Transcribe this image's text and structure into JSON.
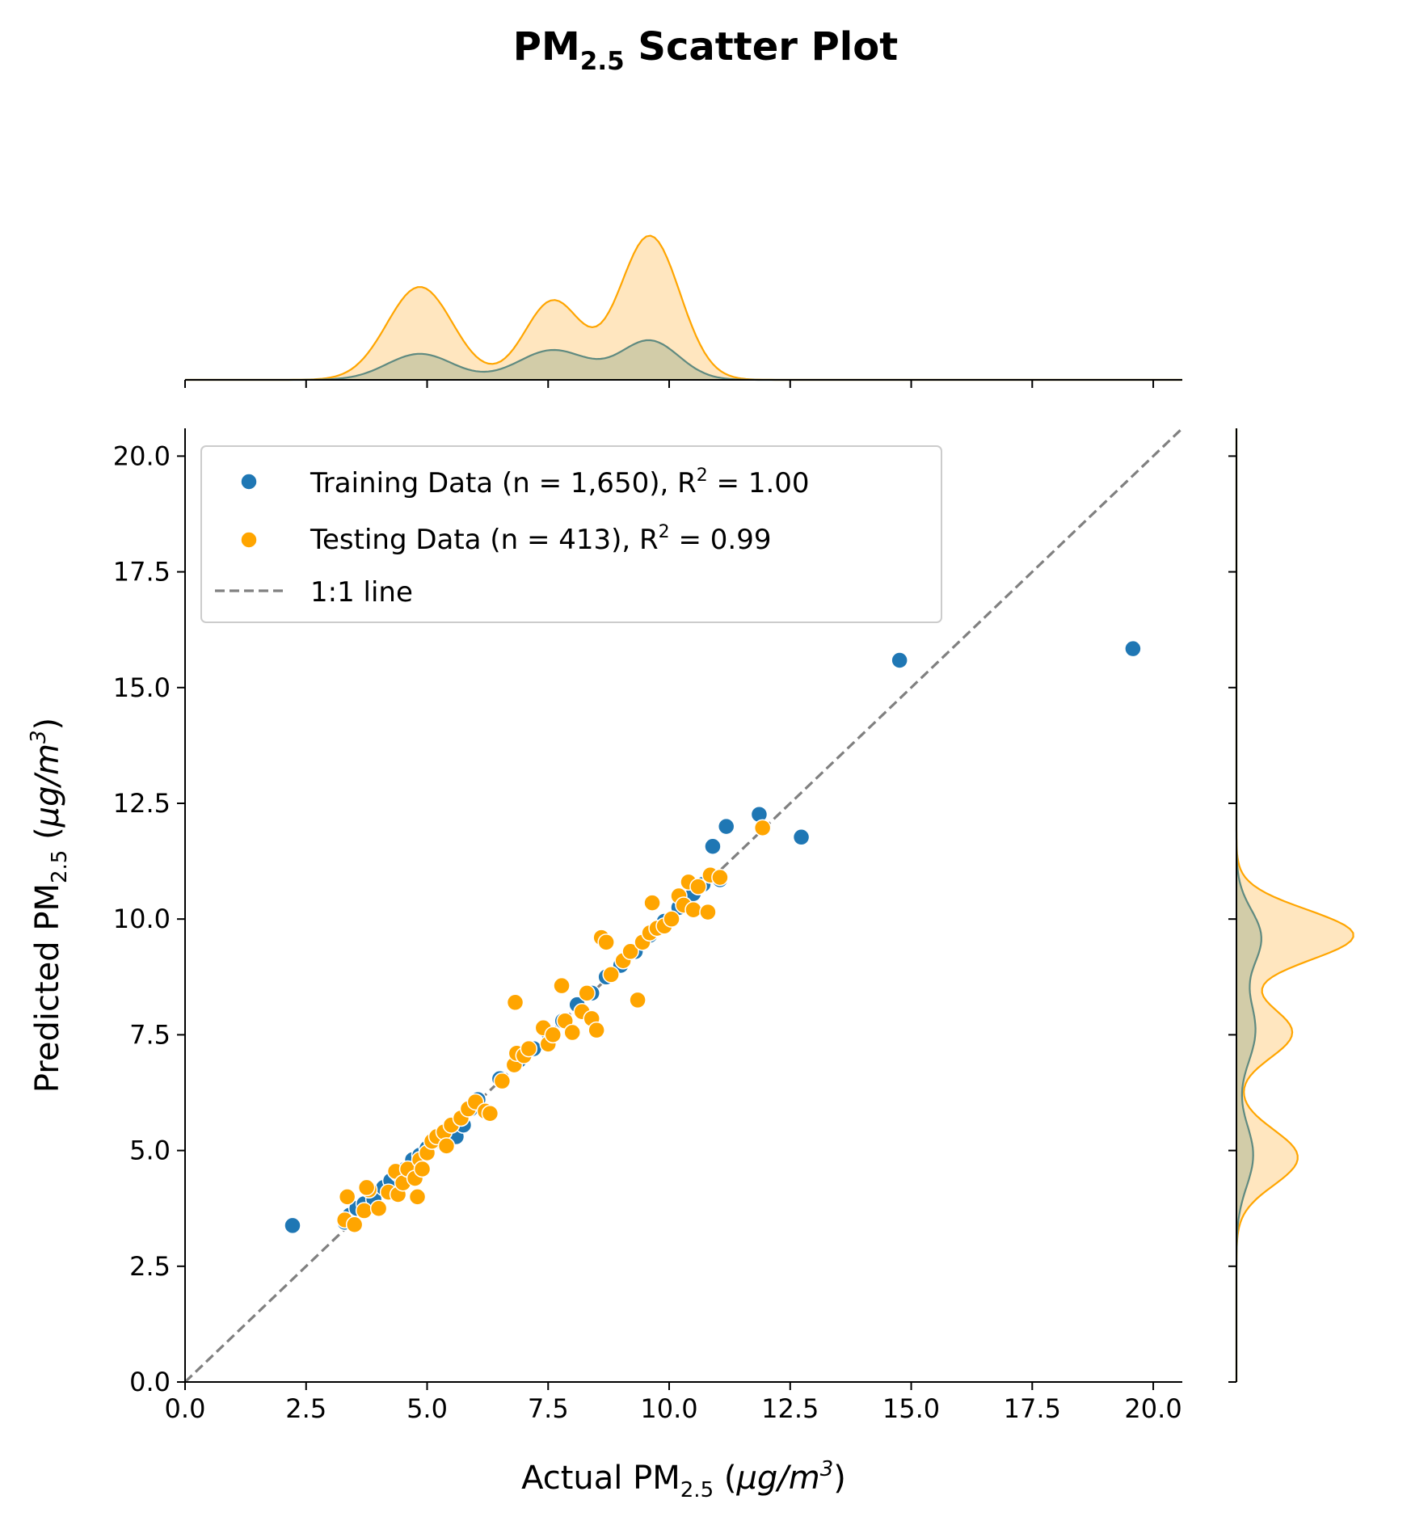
{
  "chart_data": {
    "type": "scatter",
    "title": {
      "main": "PM",
      "sub": "2.5",
      "rest": " Scatter Plot"
    },
    "xlabel": {
      "pre": "Actual PM",
      "sub": "2.5",
      "unit_open": " (",
      "unit_mu": "μg/m",
      "unit_exp": "3",
      "unit_close": ")"
    },
    "ylabel": {
      "pre": "Predicted PM",
      "sub": "2.5",
      "unit_open": " (",
      "unit_mu": "μg/m",
      "unit_exp": "3",
      "unit_close": ")"
    },
    "xlim": [
      0,
      20.6
    ],
    "ylim": [
      0,
      20.6
    ],
    "xticks": [
      "0.0",
      "2.5",
      "5.0",
      "7.5",
      "10.0",
      "12.5",
      "15.0",
      "17.5",
      "20.0"
    ],
    "yticks": [
      "0.0",
      "2.5",
      "5.0",
      "7.5",
      "10.0",
      "12.5",
      "15.0",
      "17.5",
      "20.0"
    ],
    "grid": false,
    "legend_placement": "top-left",
    "colors": {
      "training": "#1f77b4",
      "testing": "#ffa500",
      "line": "#808080",
      "train_kde_line": "#5f8a80",
      "train_kde_fill": "#d2cca8",
      "test_kde_fill": "#ffe6bf"
    },
    "legend": [
      {
        "pre": "Training Data (n = 1,650), R",
        "exp": "2",
        "post": " = 1.00"
      },
      {
        "pre": "Testing Data (n = 413), R",
        "exp": "2",
        "post": " = 0.99"
      },
      {
        "pre": "1:1 line",
        "exp": "",
        "post": ""
      }
    ],
    "series": [
      {
        "name": "Training Data (n = 1,650), R² = 1.00",
        "points": [
          [
            2.22,
            3.38
          ],
          [
            3.3,
            3.45
          ],
          [
            3.4,
            3.6
          ],
          [
            3.55,
            3.75
          ],
          [
            3.7,
            3.85
          ],
          [
            3.9,
            3.95
          ],
          [
            4.1,
            4.2
          ],
          [
            4.25,
            4.35
          ],
          [
            4.4,
            4.5
          ],
          [
            4.55,
            4.6
          ],
          [
            4.7,
            4.8
          ],
          [
            4.85,
            4.9
          ],
          [
            5.0,
            5.05
          ],
          [
            5.15,
            5.2
          ],
          [
            5.35,
            5.35
          ],
          [
            5.5,
            5.45
          ],
          [
            5.6,
            5.3
          ],
          [
            5.75,
            5.55
          ],
          [
            5.9,
            5.9
          ],
          [
            6.05,
            6.1
          ],
          [
            6.5,
            6.55
          ],
          [
            6.9,
            6.95
          ],
          [
            7.2,
            7.2
          ],
          [
            7.5,
            7.55
          ],
          [
            7.8,
            7.8
          ],
          [
            8.1,
            8.15
          ],
          [
            8.4,
            8.4
          ],
          [
            8.7,
            8.75
          ],
          [
            9.0,
            9.0
          ],
          [
            9.3,
            9.3
          ],
          [
            9.6,
            9.65
          ],
          [
            9.9,
            9.95
          ],
          [
            10.2,
            10.25
          ],
          [
            10.5,
            10.55
          ],
          [
            10.7,
            10.75
          ],
          [
            10.9,
            11.57
          ],
          [
            11.05,
            10.85
          ],
          [
            11.18,
            12.0
          ],
          [
            11.86,
            12.26
          ],
          [
            12.73,
            11.77
          ],
          [
            14.76,
            15.59
          ],
          [
            19.58,
            15.84
          ]
        ]
      },
      {
        "name": "Testing Data (n = 413), R² = 0.99",
        "points": [
          [
            3.3,
            3.5
          ],
          [
            3.35,
            4.0
          ],
          [
            3.5,
            3.4
          ],
          [
            3.7,
            3.7
          ],
          [
            3.8,
            4.15
          ],
          [
            3.75,
            4.2
          ],
          [
            4.0,
            3.75
          ],
          [
            4.2,
            4.1
          ],
          [
            4.35,
            4.55
          ],
          [
            4.4,
            4.05
          ],
          [
            4.5,
            4.3
          ],
          [
            4.6,
            4.6
          ],
          [
            4.75,
            4.4
          ],
          [
            4.8,
            4.0
          ],
          [
            4.85,
            4.8
          ],
          [
            4.9,
            4.6
          ],
          [
            5.0,
            4.95
          ],
          [
            5.1,
            5.2
          ],
          [
            5.2,
            5.3
          ],
          [
            5.35,
            5.4
          ],
          [
            5.4,
            5.1
          ],
          [
            5.5,
            5.55
          ],
          [
            5.7,
            5.7
          ],
          [
            5.85,
            5.9
          ],
          [
            6.0,
            6.05
          ],
          [
            6.2,
            5.85
          ],
          [
            6.3,
            5.8
          ],
          [
            6.55,
            6.5
          ],
          [
            6.8,
            6.85
          ],
          [
            6.85,
            7.1
          ],
          [
            6.82,
            8.2
          ],
          [
            7.0,
            7.05
          ],
          [
            7.1,
            7.2
          ],
          [
            7.4,
            7.65
          ],
          [
            7.5,
            7.3
          ],
          [
            7.6,
            7.5
          ],
          [
            7.78,
            8.56
          ],
          [
            7.85,
            7.8
          ],
          [
            8.0,
            7.55
          ],
          [
            8.2,
            8.0
          ],
          [
            8.3,
            8.4
          ],
          [
            8.4,
            7.85
          ],
          [
            8.5,
            7.6
          ],
          [
            8.6,
            9.6
          ],
          [
            8.7,
            9.5
          ],
          [
            8.8,
            8.8
          ],
          [
            9.05,
            9.1
          ],
          [
            9.2,
            9.3
          ],
          [
            9.35,
            8.25
          ],
          [
            9.45,
            9.5
          ],
          [
            9.6,
            9.7
          ],
          [
            9.65,
            10.35
          ],
          [
            9.75,
            9.8
          ],
          [
            9.9,
            9.85
          ],
          [
            10.05,
            10.0
          ],
          [
            10.2,
            10.5
          ],
          [
            10.3,
            10.3
          ],
          [
            10.4,
            10.8
          ],
          [
            10.5,
            10.2
          ],
          [
            10.6,
            10.7
          ],
          [
            10.8,
            10.15
          ],
          [
            10.85,
            10.95
          ],
          [
            11.05,
            10.9
          ],
          [
            11.93,
            11.97
          ]
        ]
      }
    ],
    "reference_line": {
      "name": "1:1 line",
      "x": [
        0,
        20.6
      ],
      "y": [
        0,
        20.6
      ]
    },
    "marginal_x": {
      "training_peaks": [
        [
          4.85,
          0.28,
          0.68
        ],
        [
          7.6,
          0.32,
          0.72
        ],
        [
          9.6,
          0.42,
          0.6
        ]
      ],
      "testing_peaks": [
        [
          4.85,
          1.0,
          0.68
        ],
        [
          7.6,
          0.85,
          0.58
        ],
        [
          9.6,
          1.55,
          0.62
        ]
      ]
    },
    "marginal_y": {
      "training_peaks": [
        [
          4.9,
          0.15,
          0.68
        ],
        [
          7.6,
          0.17,
          0.72
        ],
        [
          9.6,
          0.22,
          0.6
        ]
      ],
      "testing_peaks": [
        [
          4.85,
          0.55,
          0.6
        ],
        [
          7.55,
          0.5,
          0.55
        ],
        [
          9.65,
          1.05,
          0.55
        ]
      ]
    }
  }
}
